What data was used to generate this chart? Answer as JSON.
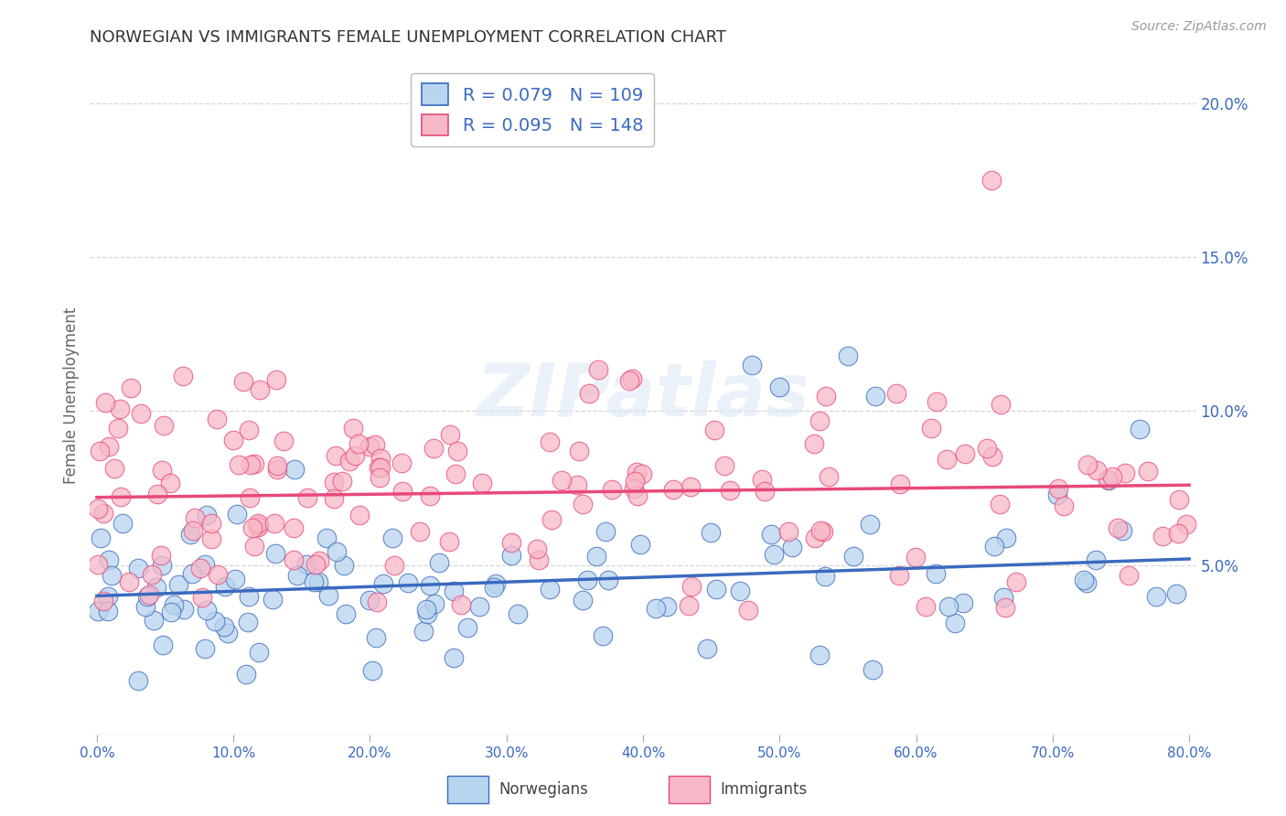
{
  "title": "NORWEGIAN VS IMMIGRANTS FEMALE UNEMPLOYMENT CORRELATION CHART",
  "source": "Source: ZipAtlas.com",
  "ylabel": "Female Unemployment",
  "r_norwegian": 0.079,
  "n_norwegian": 109,
  "r_immigrant": 0.095,
  "n_immigrant": 148,
  "xlim": [
    -0.005,
    0.805
  ],
  "ylim": [
    -0.005,
    0.215
  ],
  "xticks": [
    0.0,
    0.1,
    0.2,
    0.3,
    0.4,
    0.5,
    0.6,
    0.7,
    0.8
  ],
  "xtick_labels": [
    "0.0%",
    "10.0%",
    "20.0%",
    "30.0%",
    "40.0%",
    "50.0%",
    "60.0%",
    "70.0%",
    "80.0%"
  ],
  "yticks_right": [
    0.05,
    0.1,
    0.15,
    0.2
  ],
  "ytick_labels_right": [
    "5.0%",
    "10.0%",
    "15.0%",
    "20.0%"
  ],
  "color_norwegian": "#b8d4ee",
  "color_immigrant": "#f7b8c8",
  "line_color_norwegian": "#3a6abf",
  "line_color_immigrant": "#e8497a",
  "legend_label_norwegian": "Norwegians",
  "legend_label_immigrant": "Immigrants",
  "background_color": "#ffffff",
  "grid_color": "#cccccc",
  "title_color": "#333333",
  "axis_label_color": "#666666",
  "tick_label_color": "#3a6abf",
  "watermark_text": "ZIPatlas",
  "nor_line_x0": 0.0,
  "nor_line_y0": 0.04,
  "nor_line_x1": 0.8,
  "nor_line_y1": 0.052,
  "imm_line_x0": 0.0,
  "imm_line_y0": 0.072,
  "imm_line_x1": 0.8,
  "imm_line_y1": 0.076
}
